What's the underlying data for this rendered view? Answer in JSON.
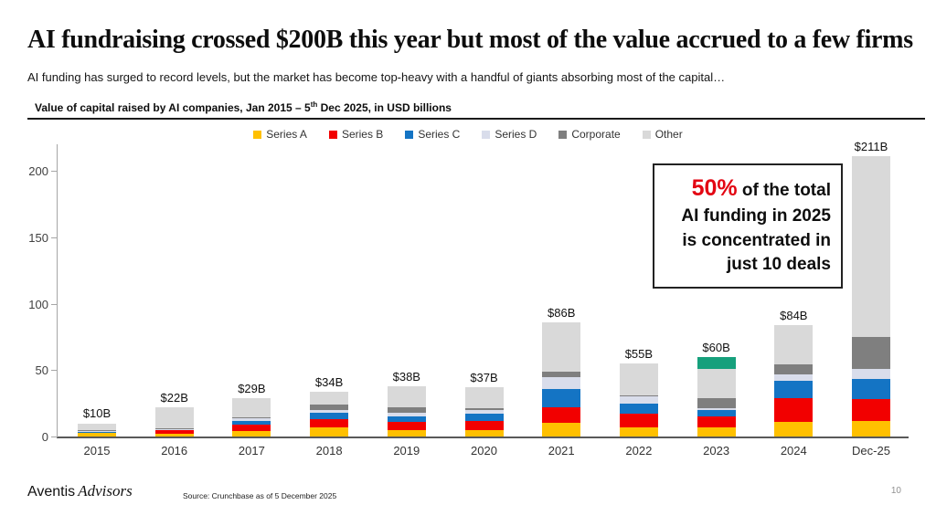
{
  "slide": {
    "title": "AI fundraising crossed $200B this year but most of the value accrued to a few firms",
    "subtitle": "AI funding has surged to record levels, but the market has become top-heavy with a handful of giants absorbing most of the capital…",
    "logo_sans": "Aventis",
    "logo_serif": "Advisors",
    "source": "Source: Crunchbase as of 5 December 2025",
    "page_number": "10"
  },
  "chart_header": {
    "prefix": "Value of capital raised by AI companies, Jan 2015 – 5",
    "superscript": "th",
    "suffix": " Dec 2025, in USD billions"
  },
  "callout": {
    "highlight": "50%",
    "lines": [
      " of the total",
      "AI funding in 2025",
      "is concentrated in",
      "just 10 deals"
    ],
    "highlight_color": "#e30613"
  },
  "chart_data": {
    "type": "bar",
    "stacked": true,
    "title": "Value of capital raised by AI companies, Jan 2015 - 5th Dec 2025, in USD billions",
    "xlabel": "",
    "ylabel": "",
    "ylim": [
      0,
      220
    ],
    "yticks": [
      0,
      50,
      100,
      150,
      200
    ],
    "grid": false,
    "legend_position": "top-center",
    "categories": [
      "2015",
      "2016",
      "2017",
      "2018",
      "2019",
      "2020",
      "2021",
      "2022",
      "2023",
      "2024",
      "Dec-25"
    ],
    "totals": [
      10,
      22,
      29,
      34,
      38,
      37,
      86,
      55,
      60,
      84,
      211
    ],
    "total_labels": [
      "$10B",
      "$22B",
      "$29B",
      "$34B",
      "$38B",
      "$37B",
      "$86B",
      "$55B",
      "$60B",
      "$84B",
      "$211B"
    ],
    "series": [
      {
        "name": "Series A",
        "color": "#FFC000",
        "in_legend": true,
        "values": [
          2.5,
          2,
          4,
          7,
          5,
          5,
          10,
          7,
          7,
          11,
          12
        ]
      },
      {
        "name": "Series B",
        "color": "#F20000",
        "in_legend": true,
        "values": [
          0.5,
          2.5,
          5,
          6,
          6,
          7,
          12,
          10,
          8,
          18,
          16
        ]
      },
      {
        "name": "Series C",
        "color": "#1474C4",
        "in_legend": true,
        "values": [
          0.5,
          0.5,
          3,
          5,
          4,
          5,
          14,
          8,
          5,
          13,
          15
        ]
      },
      {
        "name": "Series D",
        "color": "#D9DDEB",
        "in_legend": true,
        "values": [
          0.5,
          0.5,
          2,
          2,
          3,
          3,
          9,
          5,
          1,
          5,
          8
        ]
      },
      {
        "name": "Corporate",
        "color": "#7F7F7F",
        "in_legend": true,
        "values": [
          1,
          0.5,
          0.5,
          4,
          4,
          1,
          4,
          1,
          8,
          7,
          24
        ]
      },
      {
        "name": "Other",
        "color": "#D9D9D9",
        "in_legend": true,
        "values": [
          5,
          16,
          14.5,
          10,
          16,
          16,
          37,
          24,
          22,
          30,
          136
        ]
      },
      {
        "name": "Highlight deal",
        "color": "#16A07C",
        "in_legend": false,
        "values": [
          0,
          0,
          0,
          0,
          0,
          0,
          0,
          0,
          9,
          0,
          0
        ]
      }
    ]
  }
}
